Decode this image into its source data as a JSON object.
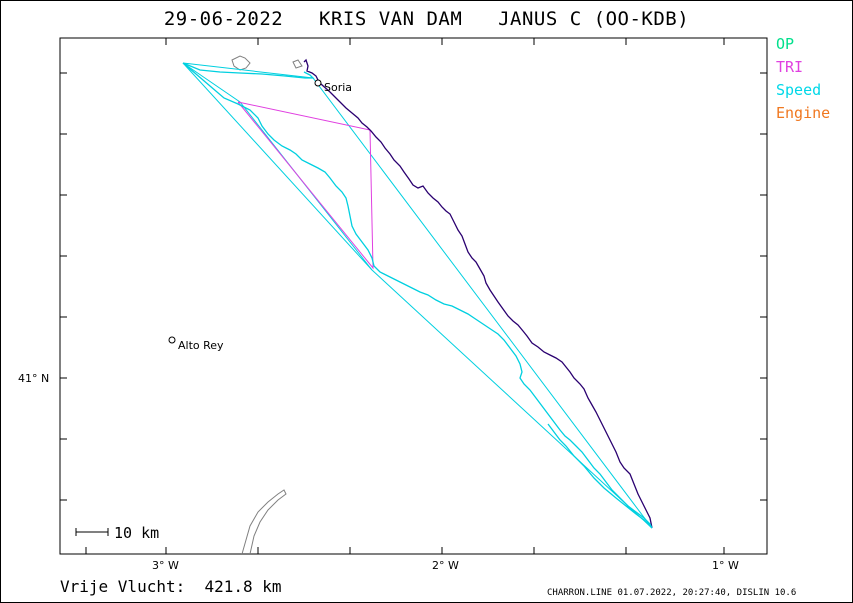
{
  "title": "29-06-2022   KRIS VAN DAM   JANUS C (OO-KDB)",
  "legend": [
    {
      "label": "OP",
      "color": "#00e08c"
    },
    {
      "label": "TRI",
      "color": "#e040e0"
    },
    {
      "label": "Speed",
      "color": "#00d8e8"
    },
    {
      "label": "Engine",
      "color": "#f07820"
    }
  ],
  "axes": {
    "x_labels": [
      "3° W",
      "2° W",
      "1° W"
    ],
    "y_labels": [
      "41° N"
    ]
  },
  "places": [
    {
      "name": "Soria"
    },
    {
      "name": "Alto Rey"
    }
  ],
  "scale_bar": "10 km",
  "footer": {
    "distance": "Vrije Vlucht:  421.8 km",
    "credit": "CHARRON.LINE 01.07.2022, 20:27:40, DISLIN 10.6"
  },
  "colors": {
    "track_main": "#2a0070",
    "track_speed": "#00d0e0",
    "triangle": "#e040e0",
    "coast": "#808080"
  }
}
